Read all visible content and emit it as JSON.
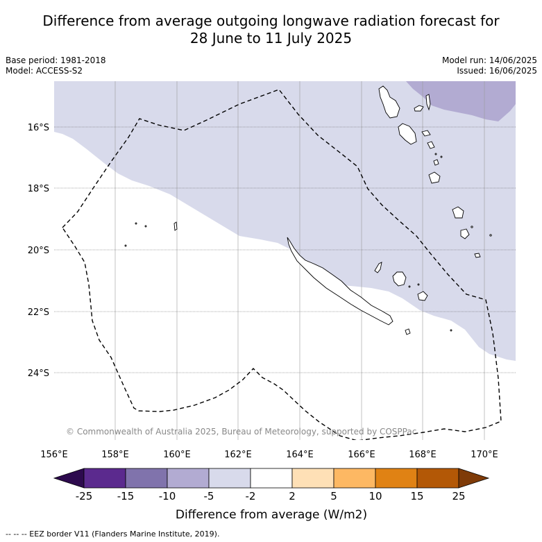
{
  "title_line1": "Difference from average outgoing longwave radiation forecast for",
  "title_line2": "28 June to 11 July 2025",
  "base_period": "Base period: 1981-2018",
  "model": "Model: ACCESS-S2",
  "model_run": "Model run: 14/06/2025",
  "issued": "Issued: 16/06/2025",
  "copyright": "© Commonwealth of Australia 2025, Bureau of Meteorology, supported by COSPPac",
  "lon_labels": [
    "156°E",
    "158°E",
    "160°E",
    "162°E",
    "164°E",
    "166°E",
    "168°E",
    "170°E"
  ],
  "lat_labels": [
    "16°S",
    "18°S",
    "20°S",
    "22°S",
    "24°S"
  ],
  "colorbar": {
    "labels": [
      "-25",
      "-15",
      "-10",
      "-5",
      "-2",
      "2",
      "5",
      "10",
      "15",
      "25"
    ],
    "colors": [
      "#2d0a4e",
      "#5b2a8e",
      "#8073ac",
      "#b2abd2",
      "#d8daeb",
      "#ffffff",
      "#fee0b6",
      "#fdb863",
      "#e08214",
      "#b35806",
      "#7f3b08"
    ],
    "title": "Difference from average (W/m2)"
  },
  "footnote": "--  --  -- EEZ border V11 (Flanders Marine Institute, 2019)."
}
